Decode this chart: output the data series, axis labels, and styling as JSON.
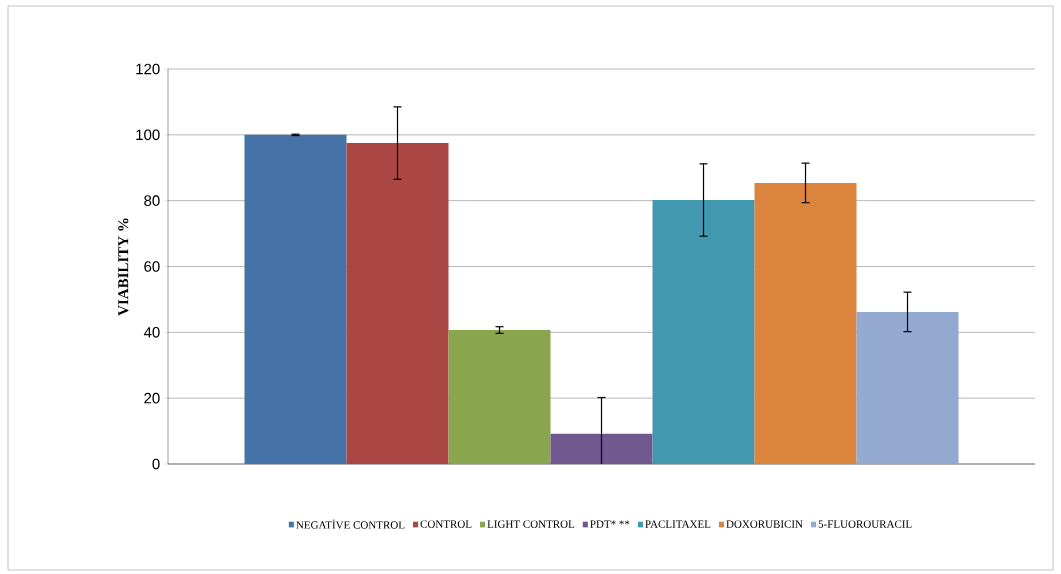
{
  "chart_data": {
    "type": "bar",
    "ylabel": "VIABILITY %",
    "categories": [
      null
    ],
    "series": [
      {
        "name": "NEGATİVE CONTROL",
        "color": "#4572a7",
        "values": [
          100
        ],
        "errors": [
          0.2
        ]
      },
      {
        "name": "CONTROL",
        "color": "#aa4643",
        "values": [
          97.5
        ],
        "errors": [
          11
        ]
      },
      {
        "name": "LIGHT CONTROL",
        "color": "#89a54e",
        "values": [
          40.7
        ],
        "errors": [
          1
        ]
      },
      {
        "name": "PDT* **",
        "color": "#71588f",
        "values": [
          9.2
        ],
        "errors": [
          11
        ]
      },
      {
        "name": "PACLITAXEL",
        "color": "#4198af",
        "values": [
          80.2
        ],
        "errors": [
          11
        ]
      },
      {
        "name": "DOXORUBICIN",
        "color": "#db843d",
        "values": [
          85.4
        ],
        "errors": [
          6
        ]
      },
      {
        "name": "5-FLUOROURACIL",
        "color": "#93a9cf",
        "values": [
          46.2
        ],
        "errors": [
          6
        ]
      }
    ],
    "ylim": [
      0,
      120
    ],
    "yticks": [
      0,
      20,
      40,
      60,
      80,
      100,
      120
    ],
    "grid": "y",
    "legend": "bottom"
  }
}
